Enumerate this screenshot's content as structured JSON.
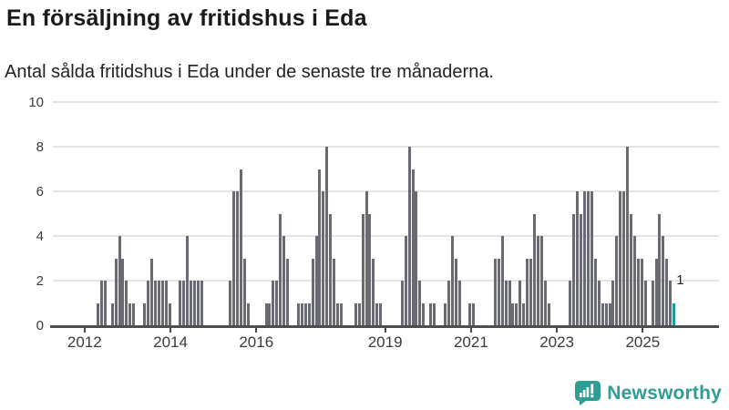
{
  "chart_data": {
    "type": "bar",
    "title": "En försäljning av fritidshus i Eda",
    "subtitle": "Antal sålda fritidshus i Eda under de senaste tre månaderna.",
    "start_month": "2012-04",
    "frequency": "monthly",
    "values": [
      1,
      2,
      2,
      0,
      1,
      3,
      4,
      3,
      2,
      1,
      1,
      0,
      0,
      1,
      2,
      3,
      2,
      2,
      2,
      2,
      1,
      0,
      0,
      2,
      2,
      4,
      2,
      2,
      2,
      2,
      0,
      0,
      0,
      0,
      0,
      0,
      0,
      2,
      6,
      6,
      7,
      3,
      1,
      0,
      0,
      0,
      0,
      1,
      1,
      2,
      2,
      5,
      4,
      3,
      0,
      0,
      1,
      1,
      1,
      1,
      3,
      4,
      7,
      6,
      8,
      5,
      3,
      1,
      1,
      0,
      0,
      0,
      1,
      1,
      5,
      6,
      5,
      3,
      1,
      1,
      0,
      0,
      0,
      0,
      0,
      2,
      4,
      8,
      7,
      6,
      2,
      1,
      0,
      1,
      1,
      0,
      0,
      1,
      2,
      4,
      3,
      2,
      0,
      0,
      1,
      1,
      0,
      0,
      0,
      0,
      0,
      3,
      3,
      4,
      2,
      2,
      1,
      1,
      2,
      1,
      3,
      3,
      5,
      4,
      4,
      2,
      1,
      0,
      0,
      0,
      0,
      0,
      2,
      5,
      6,
      5,
      6,
      6,
      6,
      3,
      2,
      1,
      1,
      1,
      2,
      4,
      6,
      6,
      8,
      5,
      4,
      3,
      3,
      2,
      0,
      2,
      3,
      5,
      4,
      3,
      2,
      1
    ],
    "ylim": [
      0,
      10
    ],
    "yticks": [
      0,
      2,
      4,
      6,
      8,
      10
    ],
    "x_ticks": [
      {
        "label": "2012",
        "year": 2012
      },
      {
        "label": "2014",
        "year": 2014
      },
      {
        "label": "2016",
        "year": 2016
      },
      {
        "label": "2019",
        "year": 2019
      },
      {
        "label": "2021",
        "year": 2021
      },
      {
        "label": "2023",
        "year": 2023
      },
      {
        "label": "2025",
        "year": 2025
      }
    ],
    "grid": true,
    "legend": "none",
    "bar_color": "#6a6a72",
    "highlight": {
      "position": "last",
      "value": 1,
      "label": "1",
      "color": "#1b9a97"
    }
  },
  "footer": {
    "brand": "Newsworthy",
    "brand_color": "#2e9e95",
    "logo_icon": "newsworthy-speech-bubble-bar-chart-icon"
  }
}
